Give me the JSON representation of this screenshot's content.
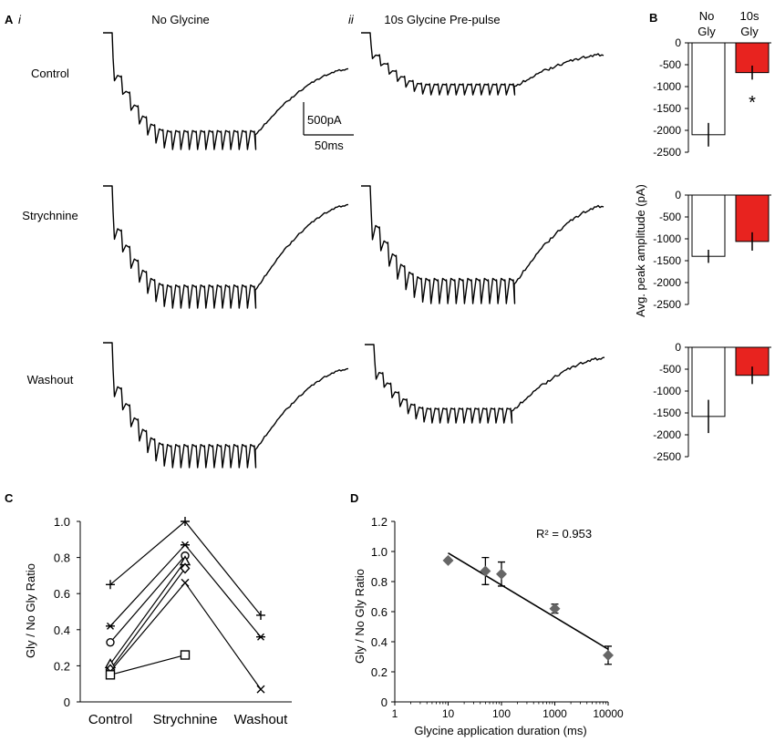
{
  "panels": {
    "A": "A",
    "A_i": "i",
    "A_ii": "ii",
    "B": "B",
    "C": "C",
    "D": "D"
  },
  "panel_a": {
    "col_titles": [
      "No Glycine",
      "10s Glycine Pre-pulse"
    ],
    "row_labels": [
      "Control",
      "Strychnine",
      "Washout"
    ],
    "scale_bar": {
      "current": "500pA",
      "time": "50ms"
    }
  },
  "chart_data": [
    {
      "id": "B",
      "type": "bar",
      "categories": [
        [
          "No",
          "Gly"
        ],
        [
          "10s",
          "Gly"
        ]
      ],
      "ylabel": "Avg. peak amplitude (pA)",
      "ylim": [
        -2500,
        0
      ],
      "yticks": [
        "0",
        "-500",
        "-1000",
        "-1500",
        "-2000",
        "-2500"
      ],
      "colors": [
        "#ffffff",
        "#e8231f"
      ],
      "rows": [
        {
          "name": "Control",
          "values": [
            -2100,
            -680
          ],
          "errors": [
            270,
            160
          ],
          "annotation": "*"
        },
        {
          "name": "Strychnine",
          "values": [
            -1400,
            -1060
          ],
          "errors": [
            150,
            210
          ],
          "annotation": ""
        },
        {
          "name": "Washout",
          "values": [
            -1580,
            -640
          ],
          "errors": [
            380,
            200
          ],
          "annotation": ""
        }
      ]
    },
    {
      "id": "C",
      "type": "line",
      "categories": [
        "Control",
        "Strychnine",
        "Washout"
      ],
      "ylabel": "Gly / No Gly Ratio",
      "ylim": [
        0,
        1.0
      ],
      "yticks": [
        "0",
        "0.2",
        "0.4",
        "0.6",
        "0.8",
        "1.0"
      ],
      "series": [
        {
          "marker": "plus",
          "values": [
            0.65,
            1.0,
            0.48
          ]
        },
        {
          "marker": "star",
          "values": [
            0.42,
            0.87,
            0.36
          ]
        },
        {
          "marker": "circle",
          "values": [
            0.33,
            0.81,
            null
          ]
        },
        {
          "marker": "triangle",
          "values": [
            0.21,
            0.78,
            null
          ]
        },
        {
          "marker": "diamond",
          "values": [
            0.18,
            0.74,
            null
          ]
        },
        {
          "marker": "x",
          "values": [
            0.17,
            0.66,
            0.07
          ]
        },
        {
          "marker": "square",
          "values": [
            0.15,
            0.26,
            null
          ]
        }
      ]
    },
    {
      "id": "D",
      "type": "scatter",
      "xlabel": "Glycine application duration (ms)",
      "ylabel": "Gly / No Gly Ratio",
      "xscale": "log",
      "xlim": [
        1,
        10000
      ],
      "xticks": [
        "1",
        "10",
        "100",
        "1000",
        "10000"
      ],
      "ylim": [
        0,
        1.2
      ],
      "yticks": [
        "0",
        "0.2",
        "0.4",
        "0.6",
        "0.8",
        "1.0",
        "1.2"
      ],
      "x": [
        10,
        50,
        100,
        1000,
        10000
      ],
      "y": [
        0.94,
        0.87,
        0.85,
        0.62,
        0.31
      ],
      "errors": [
        0,
        0.09,
        0.08,
        0.03,
        0.06
      ],
      "fit": {
        "x": [
          10,
          10000
        ],
        "y": [
          0.99,
          0.35
        ]
      },
      "annotation": "R² = 0.953",
      "marker_color": "#666666"
    }
  ]
}
